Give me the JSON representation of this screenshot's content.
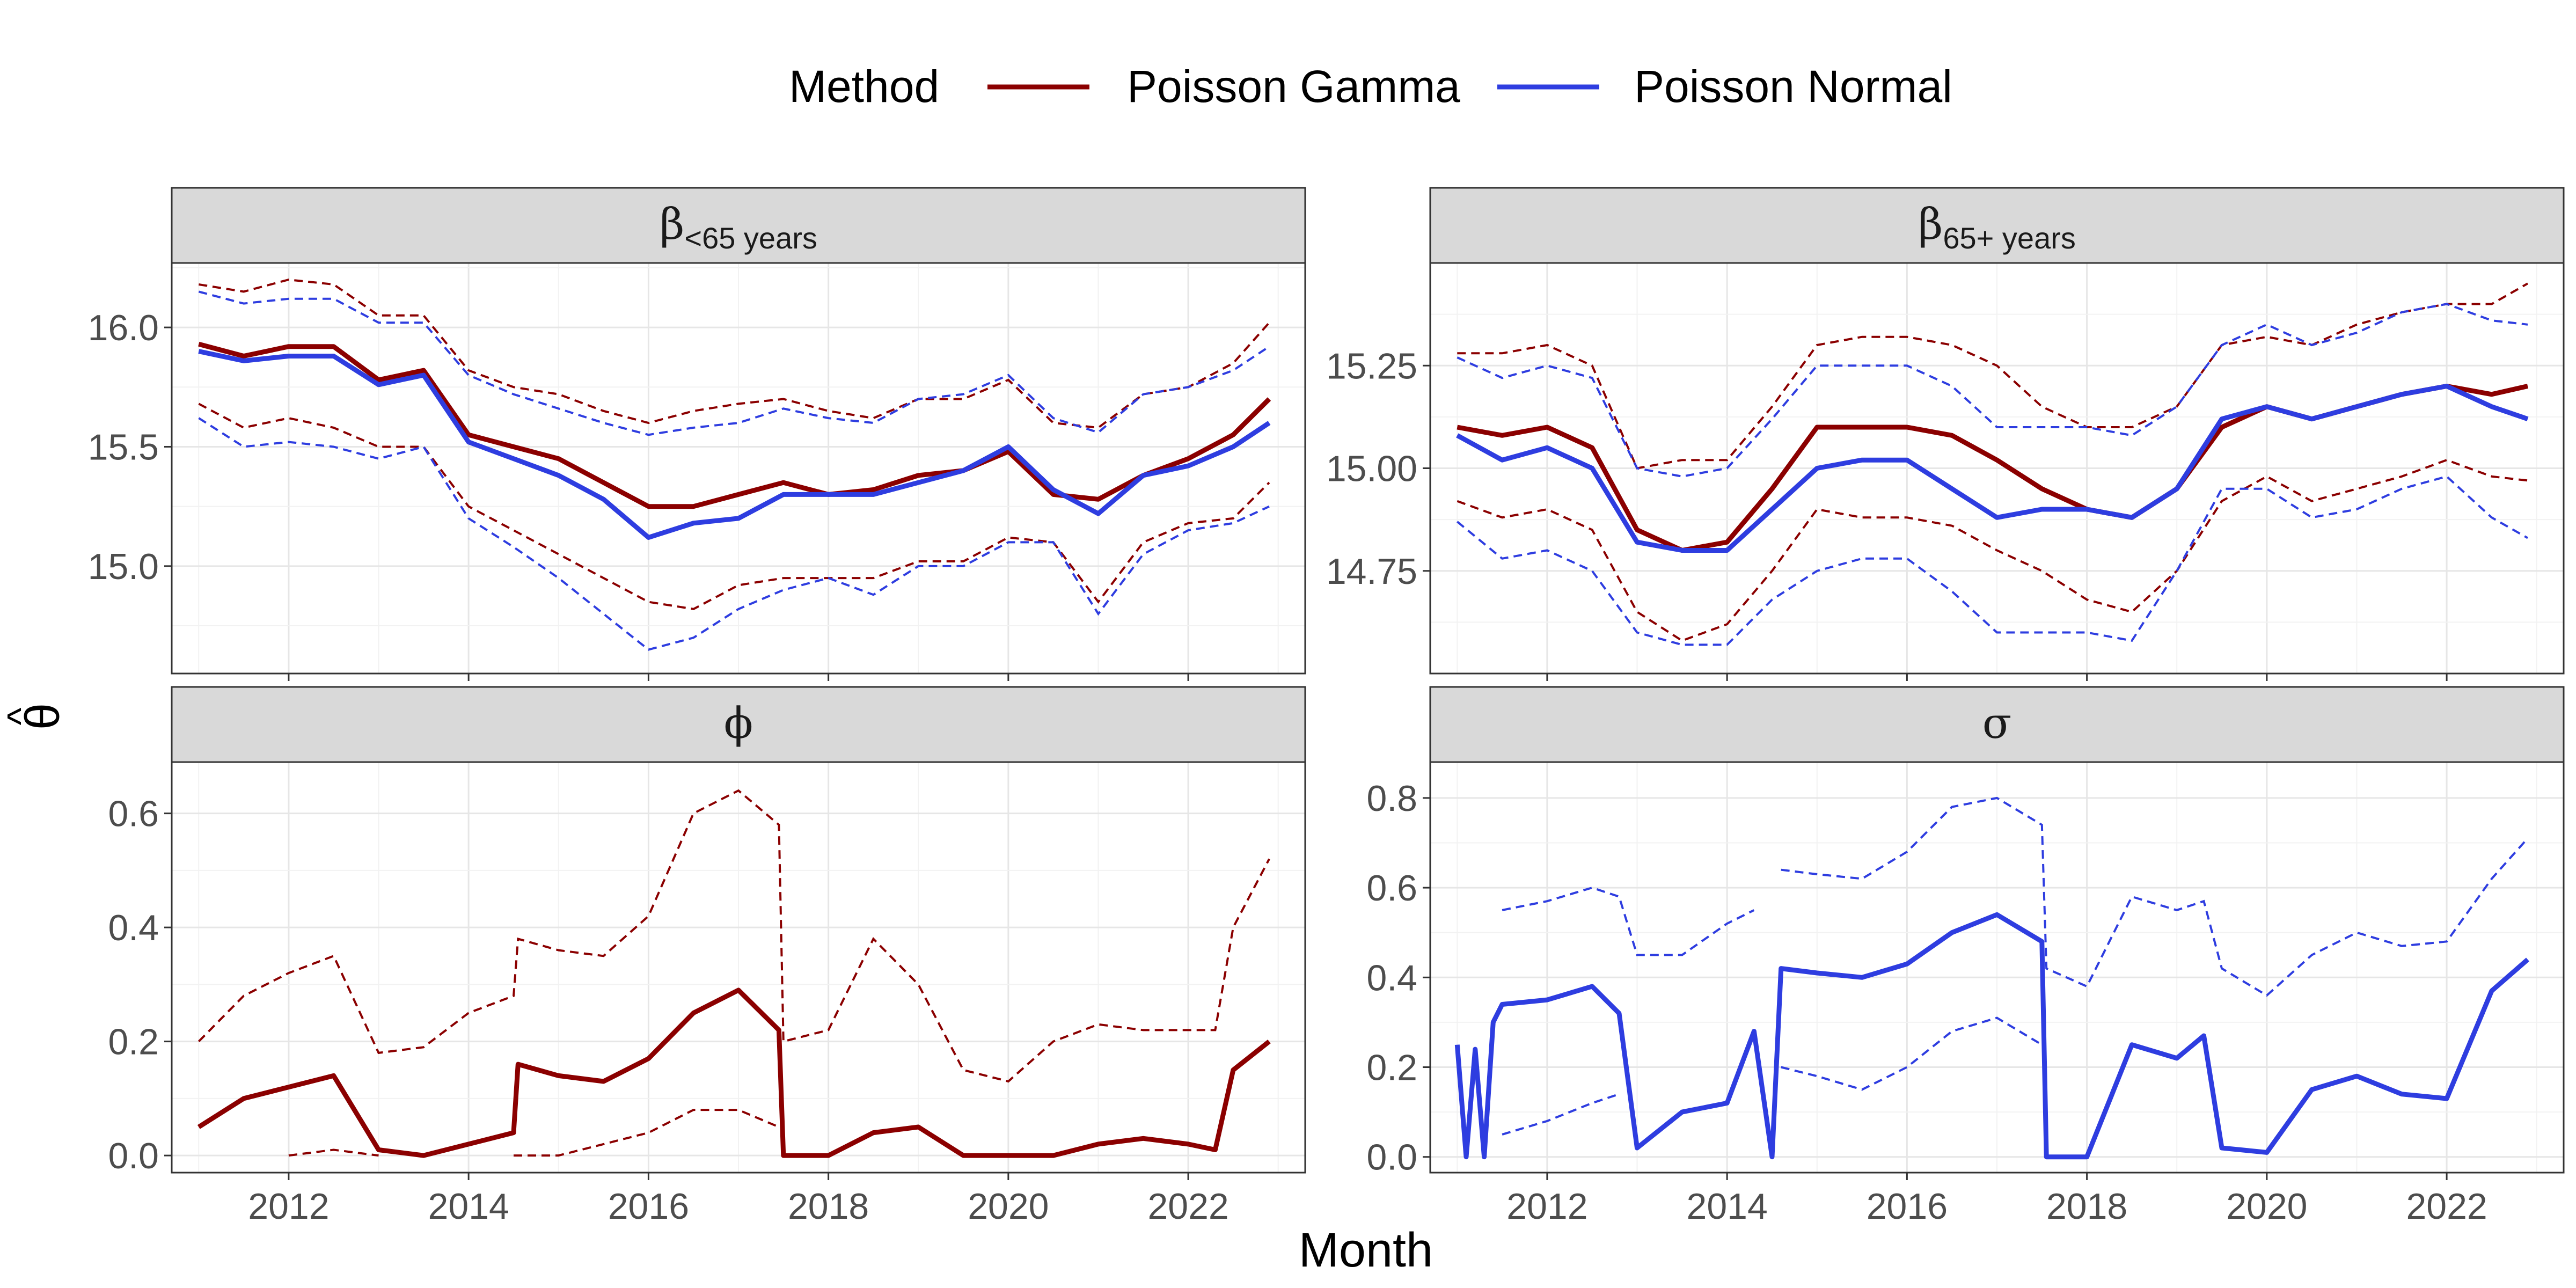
{
  "legend": {
    "title": "Method",
    "items": [
      {
        "label": "Poisson Gamma",
        "color": "#8b0000"
      },
      {
        "label": "Poisson Normal",
        "color": "#2e3de0"
      }
    ]
  },
  "axes": {
    "xlabel": "Month",
    "ylabel": "θ",
    "ylabel_hat": "^"
  },
  "chart_data": [
    {
      "type": "line",
      "strip_main": "β",
      "strip_sub": "<65 years",
      "xlim": [
        2010.7,
        2023.3
      ],
      "ylim": [
        14.55,
        16.27
      ],
      "xticks": [
        2012,
        2014,
        2016,
        2018,
        2020,
        2022
      ],
      "yticks": [
        15.0,
        15.5,
        16.0
      ],
      "ytick_labels": [
        "15.0",
        "15.5",
        "16.0"
      ],
      "grid": true,
      "series": [
        {
          "name": "Poisson Gamma",
          "color": "#8b0000",
          "x": [
            2011,
            2011.5,
            2012,
            2012.5,
            2013,
            2013.5,
            2014,
            2014.5,
            2015,
            2015.5,
            2016,
            2016.5,
            2017,
            2017.5,
            2018,
            2018.5,
            2019,
            2019.5,
            2020,
            2020.5,
            2021,
            2021.5,
            2022,
            2022.5,
            2022.9
          ],
          "y": [
            15.93,
            15.88,
            15.92,
            15.92,
            15.78,
            15.82,
            15.55,
            15.5,
            15.45,
            15.35,
            15.25,
            15.25,
            15.3,
            15.35,
            15.3,
            15.32,
            15.38,
            15.4,
            15.48,
            15.3,
            15.28,
            15.38,
            15.45,
            15.55,
            15.7
          ],
          "lower": [
            15.68,
            15.58,
            15.62,
            15.58,
            15.5,
            15.5,
            15.25,
            15.15,
            15.05,
            14.95,
            14.85,
            14.82,
            14.92,
            14.95,
            14.95,
            14.95,
            15.02,
            15.02,
            15.12,
            15.1,
            14.85,
            15.1,
            15.18,
            15.2,
            15.35
          ],
          "upper": [
            16.18,
            16.15,
            16.2,
            16.18,
            16.05,
            16.05,
            15.82,
            15.75,
            15.72,
            15.65,
            15.6,
            15.65,
            15.68,
            15.7,
            15.65,
            15.62,
            15.7,
            15.7,
            15.78,
            15.6,
            15.58,
            15.72,
            15.75,
            15.85,
            16.02
          ]
        },
        {
          "name": "Poisson Normal",
          "color": "#2e3de0",
          "x": [
            2011,
            2011.5,
            2012,
            2012.5,
            2013,
            2013.5,
            2014,
            2014.5,
            2015,
            2015.5,
            2016,
            2016.5,
            2017,
            2017.5,
            2018,
            2018.5,
            2019,
            2019.5,
            2020,
            2020.5,
            2021,
            2021.5,
            2022,
            2022.5,
            2022.9
          ],
          "y": [
            15.9,
            15.86,
            15.88,
            15.88,
            15.76,
            15.8,
            15.52,
            15.45,
            15.38,
            15.28,
            15.12,
            15.18,
            15.2,
            15.3,
            15.3,
            15.3,
            15.35,
            15.4,
            15.5,
            15.32,
            15.22,
            15.38,
            15.42,
            15.5,
            15.6
          ],
          "lower": [
            15.62,
            15.5,
            15.52,
            15.5,
            15.45,
            15.5,
            15.2,
            15.08,
            14.95,
            14.8,
            14.65,
            14.7,
            14.82,
            14.9,
            14.95,
            14.88,
            15.0,
            15.0,
            15.1,
            15.1,
            14.8,
            15.05,
            15.15,
            15.18,
            15.25
          ],
          "upper": [
            16.15,
            16.1,
            16.12,
            16.12,
            16.02,
            16.02,
            15.8,
            15.72,
            15.66,
            15.6,
            15.55,
            15.58,
            15.6,
            15.66,
            15.62,
            15.6,
            15.7,
            15.72,
            15.8,
            15.62,
            15.56,
            15.72,
            15.75,
            15.82,
            15.92
          ]
        }
      ]
    },
    {
      "type": "line",
      "strip_main": "β",
      "strip_sub": "65+ years",
      "xlim": [
        2010.7,
        2023.3
      ],
      "ylim": [
        14.5,
        15.5
      ],
      "xticks": [
        2012,
        2014,
        2016,
        2018,
        2020,
        2022
      ],
      "yticks": [
        14.75,
        15.0,
        15.25
      ],
      "ytick_labels": [
        "14.75",
        "15.00",
        "15.25"
      ],
      "grid": true,
      "series": [
        {
          "name": "Poisson Gamma",
          "color": "#8b0000",
          "x": [
            2011,
            2011.5,
            2012,
            2012.5,
            2013,
            2013.5,
            2014,
            2014.5,
            2015,
            2015.5,
            2016,
            2016.5,
            2017,
            2017.5,
            2018,
            2018.5,
            2019,
            2019.5,
            2020,
            2020.5,
            2021,
            2021.5,
            2022,
            2022.5,
            2022.9
          ],
          "y": [
            15.1,
            15.08,
            15.1,
            15.05,
            14.85,
            14.8,
            14.82,
            14.95,
            15.1,
            15.1,
            15.1,
            15.08,
            15.02,
            14.95,
            14.9,
            14.88,
            14.95,
            15.1,
            15.15,
            15.12,
            15.15,
            15.18,
            15.2,
            15.18,
            15.2
          ],
          "lower": [
            14.92,
            14.88,
            14.9,
            14.85,
            14.65,
            14.58,
            14.62,
            14.75,
            14.9,
            14.88,
            14.88,
            14.86,
            14.8,
            14.75,
            14.68,
            14.65,
            14.75,
            14.92,
            14.98,
            14.92,
            14.95,
            14.98,
            15.02,
            14.98,
            14.97
          ],
          "upper": [
            15.28,
            15.28,
            15.3,
            15.25,
            15.0,
            15.02,
            15.02,
            15.15,
            15.3,
            15.32,
            15.32,
            15.3,
            15.25,
            15.15,
            15.1,
            15.1,
            15.15,
            15.3,
            15.32,
            15.3,
            15.35,
            15.38,
            15.4,
            15.4,
            15.45
          ]
        },
        {
          "name": "Poisson Normal",
          "color": "#2e3de0",
          "x": [
            2011,
            2011.5,
            2012,
            2012.5,
            2013,
            2013.5,
            2014,
            2014.5,
            2015,
            2015.5,
            2016,
            2016.5,
            2017,
            2017.5,
            2018,
            2018.5,
            2019,
            2019.5,
            2020,
            2020.5,
            2021,
            2021.5,
            2022,
            2022.5,
            2022.9
          ],
          "y": [
            15.08,
            15.02,
            15.05,
            15.0,
            14.82,
            14.8,
            14.8,
            14.9,
            15.0,
            15.02,
            15.02,
            14.95,
            14.88,
            14.9,
            14.9,
            14.88,
            14.95,
            15.12,
            15.15,
            15.12,
            15.15,
            15.18,
            15.2,
            15.15,
            15.12
          ],
          "lower": [
            14.87,
            14.78,
            14.8,
            14.75,
            14.6,
            14.57,
            14.57,
            14.68,
            14.75,
            14.78,
            14.78,
            14.7,
            14.6,
            14.6,
            14.6,
            14.58,
            14.75,
            14.95,
            14.95,
            14.88,
            14.9,
            14.95,
            14.98,
            14.88,
            14.83
          ],
          "upper": [
            15.27,
            15.22,
            15.25,
            15.22,
            15.0,
            14.98,
            15.0,
            15.12,
            15.25,
            15.25,
            15.25,
            15.2,
            15.1,
            15.1,
            15.1,
            15.08,
            15.15,
            15.3,
            15.35,
            15.3,
            15.33,
            15.38,
            15.4,
            15.36,
            15.35
          ]
        }
      ]
    },
    {
      "type": "line",
      "strip_main": "ϕ",
      "strip_sub": "",
      "xlim": [
        2010.7,
        2023.3
      ],
      "ylim": [
        -0.03,
        0.69
      ],
      "xticks": [
        2012,
        2014,
        2016,
        2018,
        2020,
        2022
      ],
      "yticks": [
        0.0,
        0.2,
        0.4,
        0.6
      ],
      "ytick_labels": [
        "0.0",
        "0.2",
        "0.4",
        "0.6"
      ],
      "grid": true,
      "series": [
        {
          "name": "Poisson Gamma",
          "color": "#8b0000",
          "x": [
            2011,
            2011.5,
            2012,
            2012.5,
            2013,
            2013.5,
            2014,
            2014.5,
            2014.55,
            2015,
            2015.5,
            2016,
            2016.5,
            2017,
            2017.45,
            2017.5,
            2018,
            2018.5,
            2019,
            2019.5,
            2020,
            2020.5,
            2021,
            2021.5,
            2022,
            2022.3,
            2022.5,
            2022.9
          ],
          "y": [
            0.05,
            0.1,
            0.12,
            0.14,
            0.01,
            0.0,
            0.02,
            0.04,
            0.16,
            0.14,
            0.13,
            0.17,
            0.25,
            0.29,
            0.22,
            0.0,
            0.0,
            0.04,
            0.05,
            0.0,
            0.0,
            0.0,
            0.02,
            0.03,
            0.02,
            0.01,
            0.15,
            0.2
          ],
          "lower": [
            null,
            null,
            0.0,
            0.01,
            0.0,
            null,
            null,
            0.0,
            0.0,
            0.0,
            0.02,
            0.04,
            0.08,
            0.08,
            0.05,
            null,
            null,
            null,
            null,
            null,
            null,
            null,
            null,
            null,
            null,
            null,
            null,
            0.03
          ],
          "upper": [
            0.2,
            0.28,
            0.32,
            0.35,
            0.18,
            0.19,
            0.25,
            0.28,
            0.38,
            0.36,
            0.35,
            0.42,
            0.6,
            0.64,
            0.58,
            0.2,
            0.22,
            0.38,
            0.3,
            0.15,
            0.13,
            0.2,
            0.23,
            0.22,
            0.22,
            0.22,
            0.4,
            0.52
          ]
        }
      ]
    },
    {
      "type": "line",
      "strip_main": "σ",
      "strip_sub": "",
      "xlim": [
        2010.7,
        2023.3
      ],
      "ylim": [
        -0.035,
        0.88
      ],
      "xticks": [
        2012,
        2014,
        2016,
        2018,
        2020,
        2022
      ],
      "yticks": [
        0.0,
        0.2,
        0.4,
        0.6,
        0.8
      ],
      "ytick_labels": [
        "0.0",
        "0.2",
        "0.4",
        "0.6",
        "0.8"
      ],
      "grid": true,
      "series": [
        {
          "name": "Poisson Normal",
          "color": "#2e3de0",
          "x": [
            2011,
            2011.1,
            2011.2,
            2011.3,
            2011.4,
            2011.5,
            2012,
            2012.5,
            2012.8,
            2013,
            2013.5,
            2014,
            2014.3,
            2014.5,
            2014.6,
            2015,
            2015.5,
            2016,
            2016.5,
            2017,
            2017.5,
            2017.55,
            2018,
            2018.5,
            2019,
            2019.3,
            2019.5,
            2020,
            2020.5,
            2021,
            2021.5,
            2022,
            2022.5,
            2022.9
          ],
          "y": [
            0.25,
            0.0,
            0.24,
            0.0,
            0.3,
            0.34,
            0.35,
            0.38,
            0.32,
            0.02,
            0.1,
            0.12,
            0.28,
            0.0,
            0.42,
            0.41,
            0.4,
            0.43,
            0.5,
            0.54,
            0.48,
            0.0,
            0.0,
            0.25,
            0.22,
            0.27,
            0.02,
            0.01,
            0.15,
            0.18,
            0.14,
            0.13,
            0.37,
            0.44
          ],
          "lower": [
            null,
            null,
            null,
            null,
            null,
            0.05,
            0.08,
            0.12,
            0.14,
            null,
            null,
            null,
            null,
            null,
            0.2,
            0.18,
            0.15,
            0.2,
            0.28,
            0.31,
            0.25,
            null,
            null,
            null,
            null,
            null,
            null,
            null,
            null,
            null,
            null,
            null,
            null,
            0.16
          ],
          "upper": [
            null,
            null,
            null,
            null,
            null,
            0.55,
            0.57,
            0.6,
            0.58,
            0.45,
            0.45,
            0.52,
            0.55,
            null,
            0.64,
            0.63,
            0.62,
            0.68,
            0.78,
            0.8,
            0.74,
            0.42,
            0.38,
            0.58,
            0.55,
            0.57,
            0.42,
            0.36,
            0.45,
            0.5,
            0.47,
            0.48,
            0.62,
            0.71
          ]
        }
      ]
    }
  ]
}
